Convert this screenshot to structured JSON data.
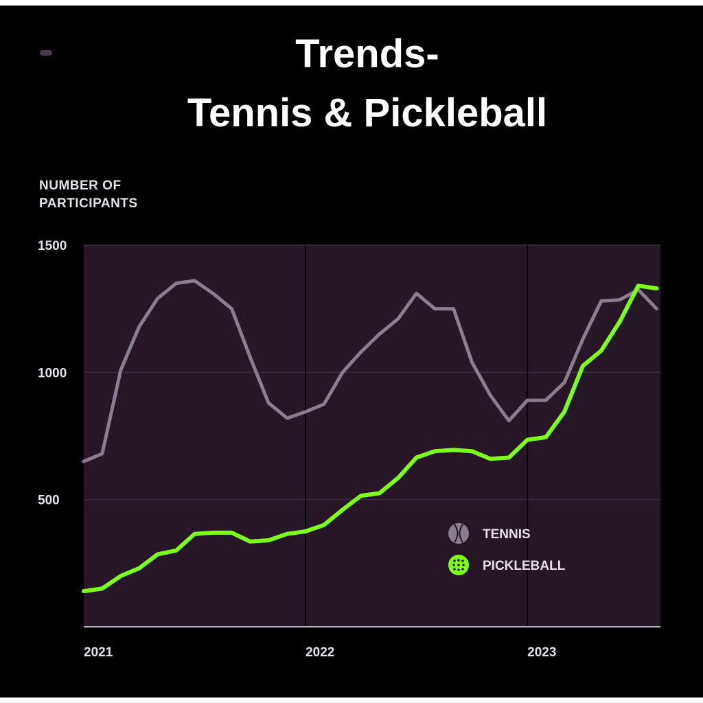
{
  "title": {
    "line1": "Trends-",
    "line2": "Tennis & Pickleball"
  },
  "chart_data": {
    "type": "line",
    "ylabel_line1": "NUMBER OF",
    "ylabel_line2": "PARTICIPANTS",
    "ylim": [
      0,
      1500
    ],
    "yticks": [
      "1500",
      "1000",
      "500"
    ],
    "xticks": [
      "2021",
      "2022",
      "2023"
    ],
    "x_range": [
      2021.0,
      2023.6
    ],
    "grid": "horizontal",
    "legend_position": "lower-right",
    "series": [
      {
        "name": "TENNIS",
        "color": "#8a7d8f",
        "icon": "tennis-ball-icon",
        "x": [
          2021.0,
          2021.083,
          2021.167,
          2021.25,
          2021.333,
          2021.417,
          2021.5,
          2021.583,
          2021.667,
          2021.75,
          2021.833,
          2021.917,
          2022.0,
          2022.083,
          2022.167,
          2022.25,
          2022.333,
          2022.417,
          2022.5,
          2022.583,
          2022.667,
          2022.75,
          2022.833,
          2022.917,
          2023.0,
          2023.083,
          2023.167,
          2023.25,
          2023.333,
          2023.417,
          2023.5,
          2023.583
        ],
        "values": [
          650,
          680,
          1010,
          1180,
          1290,
          1350,
          1360,
          1310,
          1250,
          1060,
          880,
          820,
          845,
          875,
          1000,
          1080,
          1150,
          1210,
          1310,
          1250,
          1250,
          1040,
          910,
          810,
          890,
          890,
          960,
          1130,
          1280,
          1285,
          1325,
          1250
        ]
      },
      {
        "name": "PICKLEBALL",
        "color": "#7dff1a",
        "icon": "pickleball-icon",
        "x": [
          2021.0,
          2021.083,
          2021.167,
          2021.25,
          2021.333,
          2021.417,
          2021.5,
          2021.583,
          2021.667,
          2021.75,
          2021.833,
          2021.917,
          2022.0,
          2022.083,
          2022.167,
          2022.25,
          2022.333,
          2022.417,
          2022.5,
          2022.583,
          2022.667,
          2022.75,
          2022.833,
          2022.917,
          2023.0,
          2023.083,
          2023.167,
          2023.25,
          2023.333,
          2023.417,
          2023.5,
          2023.583
        ],
        "values": [
          140,
          150,
          200,
          230,
          285,
          300,
          365,
          370,
          370,
          335,
          340,
          365,
          375,
          400,
          460,
          515,
          525,
          585,
          665,
          690,
          695,
          690,
          660,
          665,
          735,
          745,
          845,
          1025,
          1085,
          1200,
          1340,
          1330
        ]
      }
    ]
  }
}
